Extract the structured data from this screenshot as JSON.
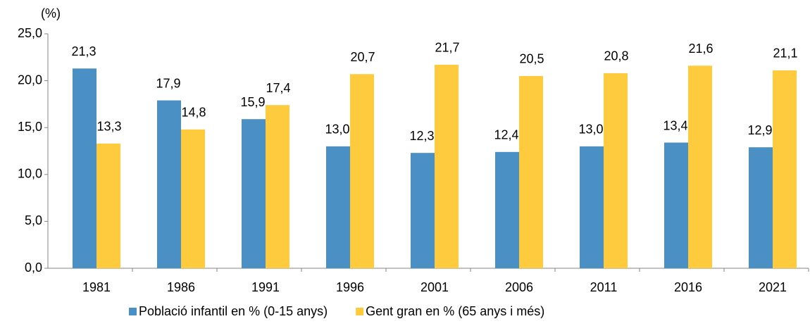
{
  "chart_data": {
    "type": "bar",
    "y_label": "(%)",
    "categories": [
      "1981",
      "1986",
      "1991",
      "1996",
      "2001",
      "2006",
      "2011",
      "2016",
      "2021"
    ],
    "series": [
      {
        "name": "Població infantil en % (0-15 anys)",
        "color": "#4a90c4",
        "values": [
          21.3,
          17.9,
          15.9,
          13.0,
          12.3,
          12.4,
          13.0,
          13.4,
          12.9
        ],
        "value_labels": [
          "21,3",
          "17,9",
          "15,9",
          "13,0",
          "12,3",
          "12,4",
          "13,0",
          "13,4",
          "12,9"
        ]
      },
      {
        "name": "Gent gran en % (65 anys i més)",
        "color": "#fecb3e",
        "values": [
          13.3,
          14.8,
          17.4,
          20.7,
          21.7,
          20.5,
          20.8,
          21.6,
          21.1
        ],
        "value_labels": [
          "13,3",
          "14,8",
          "17,4",
          "20,7",
          "21,7",
          "20,5",
          "20,8",
          "21,6",
          "21,1"
        ]
      }
    ],
    "ylim": [
      0,
      25
    ],
    "yticks": [
      {
        "value": 0,
        "label": "0,0"
      },
      {
        "value": 5,
        "label": "5,0"
      },
      {
        "value": 10,
        "label": "10,0"
      },
      {
        "value": 15,
        "label": "15,0"
      },
      {
        "value": 20,
        "label": "20,0"
      },
      {
        "value": 25,
        "label": "25,0"
      }
    ],
    "grid": false,
    "legend": "bottom"
  }
}
